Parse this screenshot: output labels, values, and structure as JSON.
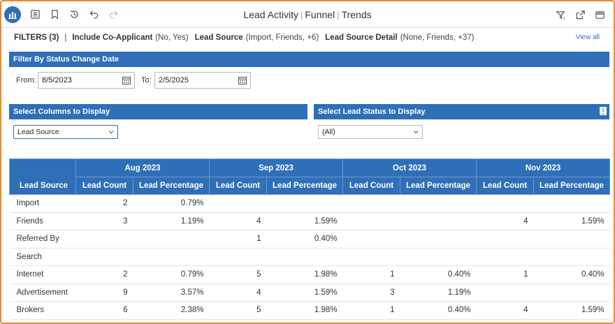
{
  "toolbar": {
    "title_parts": [
      "Lead Activity",
      "Funnel",
      "Trends"
    ],
    "title_separator": "|",
    "left_icons": [
      "report-app-icon",
      "list-icon",
      "bookmark-icon",
      "history-icon",
      "undo-icon",
      "redo-icon"
    ],
    "right_icons": [
      "filter-icon",
      "share-icon",
      "present-icon"
    ]
  },
  "filters": {
    "label": "FILTERS (3)",
    "separator": "|",
    "items": [
      {
        "name": "Include Co-Applicant",
        "value": "(No, Yes)"
      },
      {
        "name": "Lead Source",
        "value": "(Import, Friends, +6)"
      },
      {
        "name": "Lead Source Detail",
        "value": "(None, Friends, +37)"
      }
    ],
    "view_all": "View all"
  },
  "date_filter": {
    "title": "Filter By Status Change Date",
    "from_label": "From:",
    "from_value": "8/5/2023",
    "to_label": "To:",
    "to_value": "2/5/2025"
  },
  "columns_select": {
    "title": "Select Columns to Display",
    "value": "Lead Source"
  },
  "status_select": {
    "title": "Select Lead Status to Display",
    "value": "(All)"
  },
  "colors": {
    "primary": "#2f6fb7",
    "frame": "#e8892c"
  },
  "table": {
    "row_header": "Lead Source",
    "months": [
      "Aug 2023",
      "Sep 2023",
      "Oct 2023",
      "Nov 2023"
    ],
    "sub_headers": [
      "Lead Count",
      "Lead Percentage"
    ],
    "rows": [
      {
        "source": "Import",
        "cells": [
          "2",
          "0.79%",
          "",
          "",
          "",
          "",
          "",
          ""
        ]
      },
      {
        "source": "Friends",
        "cells": [
          "3",
          "1.19%",
          "4",
          "1.59%",
          "",
          "",
          "4",
          "1.59%"
        ]
      },
      {
        "source": "Referred By",
        "cells": [
          "",
          "",
          "1",
          "0.40%",
          "",
          "",
          "",
          ""
        ]
      },
      {
        "source": "Search",
        "cells": [
          "",
          "",
          "",
          "",
          "",
          "",
          "",
          ""
        ]
      },
      {
        "source": "Internet",
        "cells": [
          "2",
          "0.79%",
          "5",
          "1.98%",
          "1",
          "0.40%",
          "1",
          "0.40%"
        ]
      },
      {
        "source": "Advertisement",
        "cells": [
          "9",
          "3.57%",
          "4",
          "1.59%",
          "3",
          "1.19%",
          "",
          ""
        ]
      },
      {
        "source": "Brokers",
        "cells": [
          "6",
          "2.38%",
          "5",
          "1.98%",
          "1",
          "0.40%",
          "4",
          "1.59%"
        ]
      }
    ]
  }
}
